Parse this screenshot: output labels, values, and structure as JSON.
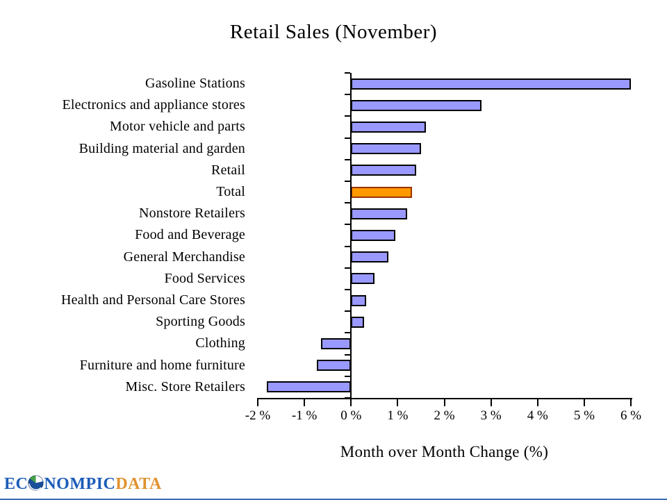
{
  "title": "Retail Sales (November)",
  "chart_data": {
    "type": "bar",
    "orientation": "horizontal",
    "title": "Retail Sales (November)",
    "xlabel": "Month over Month Change (%)",
    "ylabel": "",
    "xlim": [
      -2,
      6
    ],
    "x_tick_labels": [
      "-2 %",
      "-1 %",
      "0 %",
      "1 %",
      "2 %",
      "3 %",
      "4 %",
      "5 %",
      "6 %"
    ],
    "x_tick_values": [
      -2,
      -1,
      0,
      1,
      2,
      3,
      4,
      5,
      6
    ],
    "grid": false,
    "legend": false,
    "categories": [
      "Gasoline Stations",
      "Electronics and appliance stores",
      "Motor vehicle and parts",
      "Building material and garden",
      "Retail",
      "Total",
      "Nonstore Retailers",
      "Food and Beverage",
      "General Merchandise",
      "Food Services",
      "Health and Personal Care Stores",
      "Sporting Goods",
      "Clothing",
      "Furniture and home furniture",
      "Misc. Store Retailers"
    ],
    "values": [
      6.0,
      2.8,
      1.6,
      1.5,
      1.4,
      1.3,
      1.2,
      0.95,
      0.8,
      0.5,
      0.32,
      0.28,
      -0.65,
      -0.73,
      -1.8
    ],
    "highlight_index": 5,
    "colors": {
      "bar_fill": "#9999FF",
      "bar_border": "#000000",
      "highlight_fill": "#FF9900",
      "highlight_border": "#993300",
      "axis": "#000000"
    }
  },
  "footer": {
    "logo": {
      "ec": "EC",
      "nompic": "NOMPIC",
      "data": "DATA"
    },
    "logo_colors": {
      "text_blue": "#1b5cb8",
      "text_orange": "#e0922f",
      "globe_blue": "#1a4f9c",
      "globe_green": "#44a046"
    },
    "bottom_line_color": "#3f6bb3"
  }
}
